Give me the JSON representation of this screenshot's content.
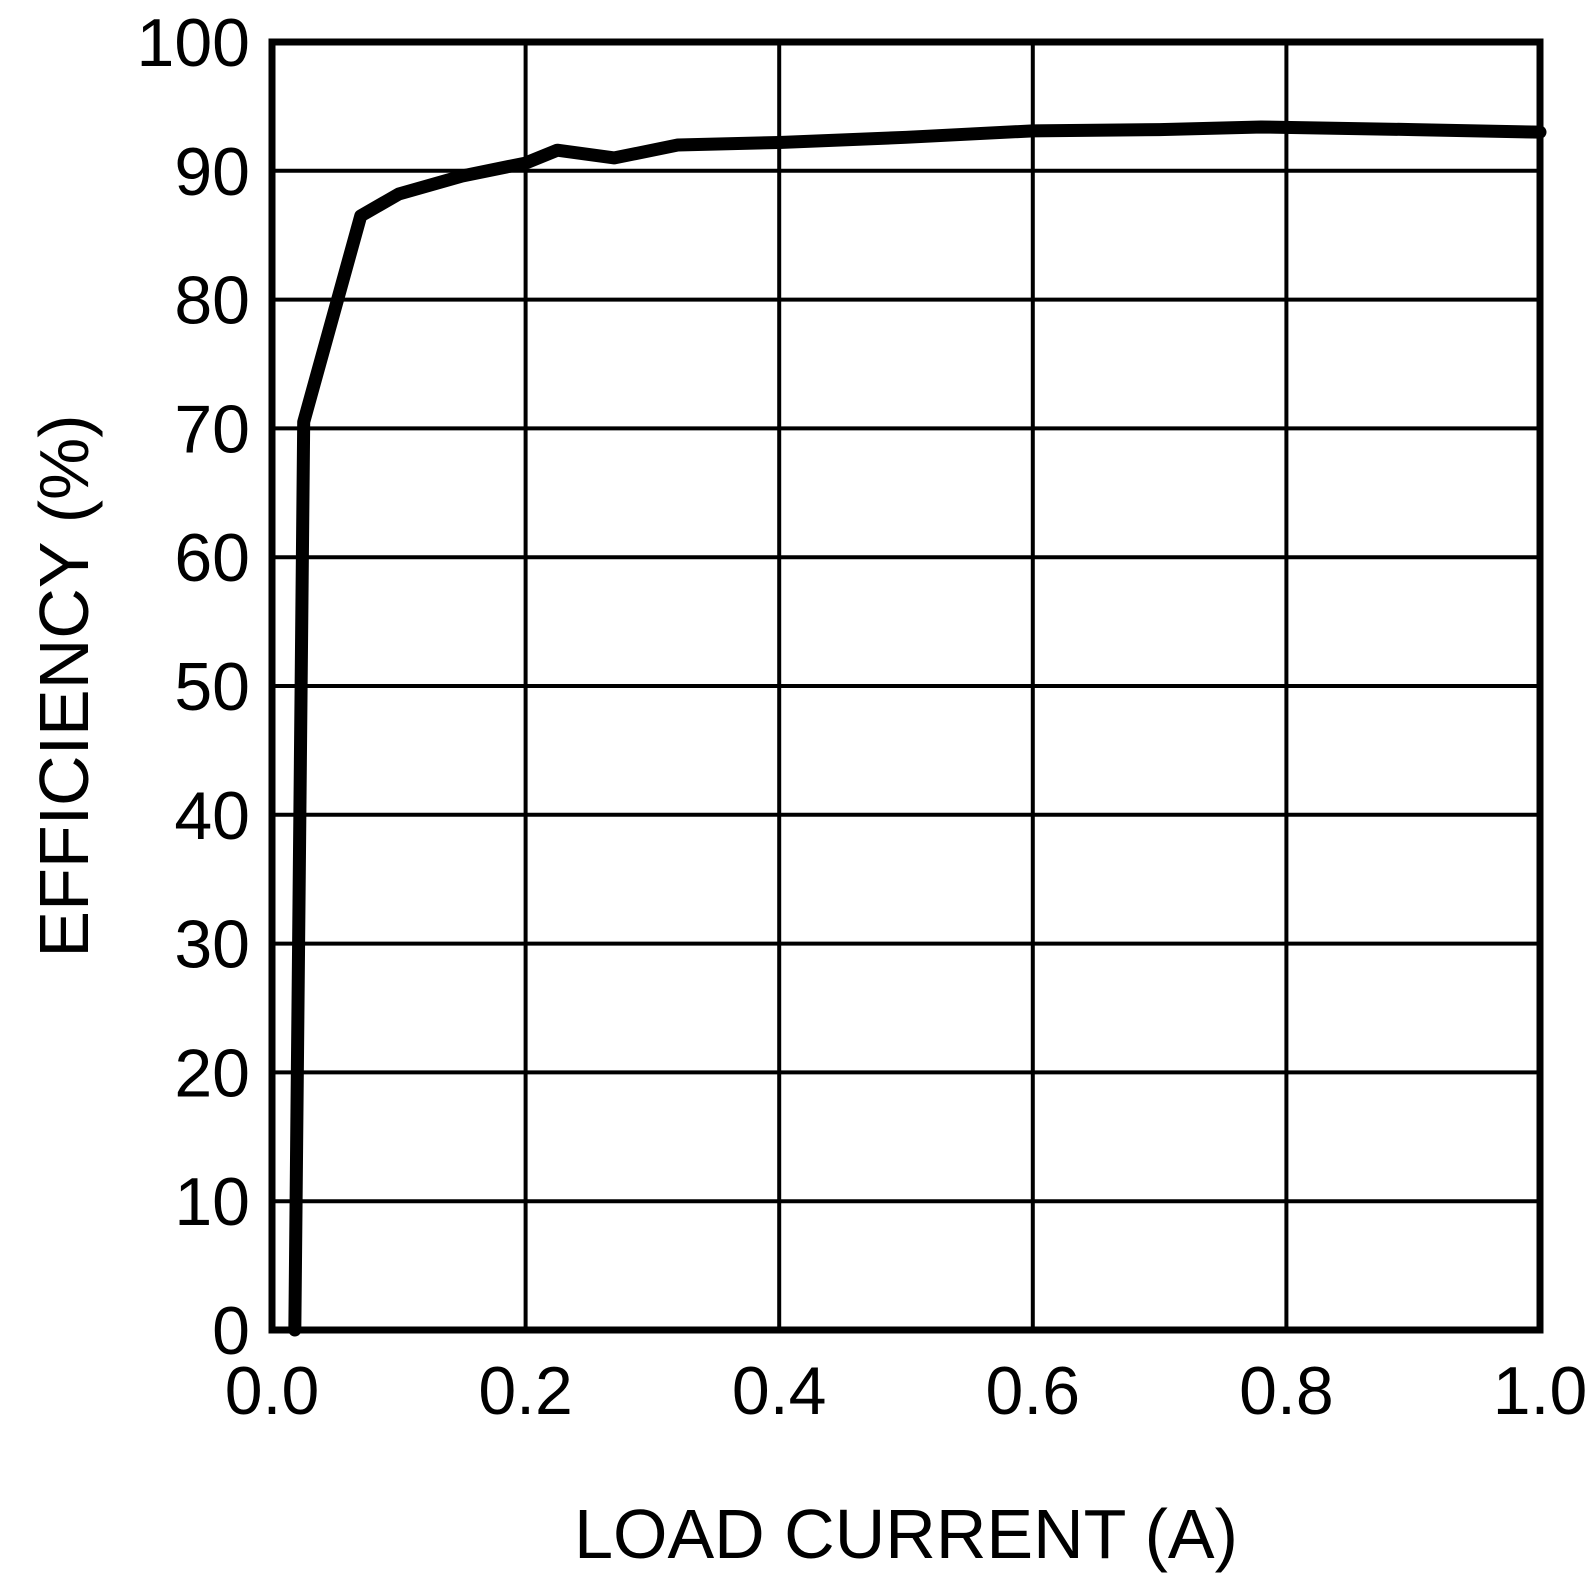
{
  "chart_data": {
    "type": "line",
    "title": "",
    "xlabel": "LOAD CURRENT (A)",
    "ylabel": "EFFICIENCY (%)",
    "xlim": [
      0.0,
      1.0
    ],
    "ylim": [
      0,
      100
    ],
    "grid": true,
    "legend": "none",
    "grid_color": "#000000",
    "border_color": "#000000",
    "background_color": "#ffffff",
    "xticks": [
      0.0,
      0.2,
      0.4,
      0.6,
      0.8,
      1.0
    ],
    "xtick_labels": [
      "0.0",
      "0.2",
      "0.4",
      "0.6",
      "0.8",
      "1.0"
    ],
    "yticks": [
      0,
      10,
      20,
      30,
      40,
      50,
      60,
      70,
      80,
      90,
      100
    ],
    "ytick_labels": [
      "0",
      "10",
      "20",
      "30",
      "40",
      "50",
      "60",
      "70",
      "80",
      "90",
      "100"
    ],
    "series": [
      {
        "name": "efficiency",
        "x": [
          0.018,
          0.025,
          0.07,
          0.1,
          0.15,
          0.2,
          0.225,
          0.27,
          0.32,
          0.4,
          0.5,
          0.6,
          0.7,
          0.78,
          0.9,
          1.0
        ],
        "y": [
          0,
          70.5,
          86.5,
          88.2,
          89.6,
          90.6,
          91.6,
          91.0,
          92.0,
          92.2,
          92.6,
          93.1,
          93.2,
          93.4,
          93.2,
          93.0
        ],
        "color": "#000000",
        "line_width": 13
      }
    ]
  }
}
